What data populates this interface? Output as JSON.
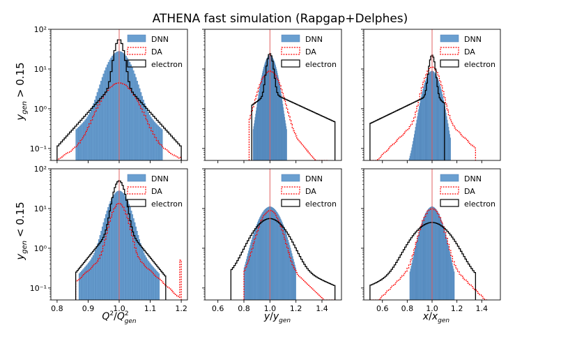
{
  "chart_data": {
    "type": "histogram-grid",
    "title": "ATHENA fast simulation (Rapgap+Delphes)",
    "row_labels": [
      "y_gen > 0.15",
      "y_gen < 0.15"
    ],
    "legend": [
      "DNN",
      "DA",
      "electron"
    ],
    "ylog_ticks": [
      "10⁻¹",
      "10⁰",
      "10¹",
      "10²"
    ],
    "yrange": [
      0.05,
      100
    ],
    "colors": {
      "dnn": "#6a9fd0",
      "dnn_edge": "#4a7fb5",
      "da": "#ff0000",
      "electron": "#000000",
      "ref": "#e06060"
    },
    "panels": [
      {
        "id": "q2-high",
        "row": 0,
        "col": 0,
        "xlabel": "Q²/Q²_gen",
        "xlim": [
          0.78,
          1.22
        ],
        "xticks": [
          0.8,
          0.9,
          1.0,
          1.1,
          1.2
        ],
        "xtick_labels": [],
        "dnn": {
          "center": 1.0,
          "peak": 25,
          "sigma": 0.03,
          "tail": 0.06,
          "min": 0.86,
          "max": 1.14
        },
        "da": {
          "center": 1.0,
          "peak": 4,
          "sigma": 0.04,
          "tail": 0.09,
          "min": 0.8,
          "max": 1.2,
          "clip": 0.06
        },
        "electron": {
          "center": 1.0,
          "peak": 50,
          "sigma": 0.012,
          "tail": 0.05,
          "min": 0.8,
          "max": 1.2
        }
      },
      {
        "id": "y-high",
        "row": 0,
        "col": 1,
        "xlabel": "y/y_gen",
        "xlim": [
          0.5,
          1.55
        ],
        "xticks": [
          0.6,
          0.8,
          1.0,
          1.2,
          1.4
        ],
        "xtick_labels": [],
        "dnn": {
          "center": 1.0,
          "peak": 20,
          "sigma": 0.04,
          "tail": 0.05,
          "min": 0.87,
          "max": 1.13
        },
        "da": {
          "center": 1.0,
          "peak": 8,
          "sigma": 0.06,
          "tail": 0.12,
          "min": 0.84,
          "max": 1.45
        },
        "electron": {
          "center": 1.0,
          "peak": 22,
          "sigma": 0.02,
          "tail": 0.18,
          "min": 0.86,
          "max": 1.5,
          "skew": "right"
        }
      },
      {
        "id": "x-high",
        "row": 0,
        "col": 2,
        "xlabel": "x/x_gen",
        "xlim": [
          0.45,
          1.55
        ],
        "xticks": [
          0.6,
          0.8,
          1.0,
          1.2,
          1.4
        ],
        "xtick_labels": [],
        "dnn": {
          "center": 1.0,
          "peak": 8,
          "sigma": 0.05,
          "tail": 0.06,
          "min": 0.8,
          "max": 1.15
        },
        "da": {
          "center": 1.0,
          "peak": 10,
          "sigma": 0.05,
          "tail": 0.14,
          "min": 0.5,
          "max": 1.35
        },
        "electron": {
          "center": 1.0,
          "peak": 20,
          "sigma": 0.02,
          "tail": 0.18,
          "min": 0.5,
          "max": 1.1,
          "skew": "left"
        }
      },
      {
        "id": "q2-low",
        "row": 1,
        "col": 0,
        "xlabel": "Q²/Q²_gen",
        "xlim": [
          0.78,
          1.22
        ],
        "xticks": [
          0.8,
          0.9,
          1.0,
          1.1,
          1.2
        ],
        "xtick_labels": [
          "0.8",
          "0.9",
          "1.0",
          "1.1",
          "1.2"
        ],
        "dnn": {
          "center": 1.0,
          "peak": 25,
          "sigma": 0.025,
          "tail": 0.05,
          "min": 0.87,
          "max": 1.13
        },
        "da": {
          "center": 1.0,
          "peak": 12,
          "sigma": 0.02,
          "tail": 0.06,
          "min": 0.86,
          "max": 1.2,
          "clip": 0.5
        },
        "electron": {
          "center": 1.0,
          "peak": 45,
          "sigma": 0.015,
          "tail": 0.045,
          "min": 0.86,
          "max": 1.15
        }
      },
      {
        "id": "y-low",
        "row": 1,
        "col": 1,
        "xlabel": "y/y_gen",
        "xlim": [
          0.5,
          1.55
        ],
        "xticks": [
          0.6,
          0.8,
          1.0,
          1.2,
          1.4
        ],
        "xtick_labels": [
          "0.6",
          "0.8",
          "1.0",
          "1.2",
          "1.4"
        ],
        "dnn": {
          "center": 1.0,
          "peak": 10,
          "sigma": 0.07,
          "tail": 0.09,
          "min": 0.8,
          "max": 1.2
        },
        "da": {
          "center": 1.0,
          "peak": 8,
          "sigma": 0.06,
          "tail": 0.14,
          "min": 0.8,
          "max": 1.5
        },
        "electron": {
          "center": 1.0,
          "peak": 5,
          "sigma": 0.1,
          "tail": 0.3,
          "min": 0.7,
          "max": 1.5
        }
      },
      {
        "id": "x-low",
        "row": 1,
        "col": 2,
        "xlabel": "x/x_gen",
        "xlim": [
          0.45,
          1.55
        ],
        "xticks": [
          0.6,
          0.8,
          1.0,
          1.2,
          1.4
        ],
        "xtick_labels": [
          "0.6",
          "0.8",
          "1.0",
          "1.2",
          "1.4"
        ],
        "dnn": {
          "center": 1.0,
          "peak": 10,
          "sigma": 0.06,
          "tail": 0.08,
          "min": 0.82,
          "max": 1.18
        },
        "da": {
          "center": 1.0,
          "peak": 9,
          "sigma": 0.06,
          "tail": 0.14,
          "min": 0.5,
          "max": 1.45
        },
        "electron": {
          "center": 1.0,
          "peak": 4,
          "sigma": 0.12,
          "tail": 0.35,
          "min": 0.5,
          "max": 1.35
        }
      }
    ]
  }
}
